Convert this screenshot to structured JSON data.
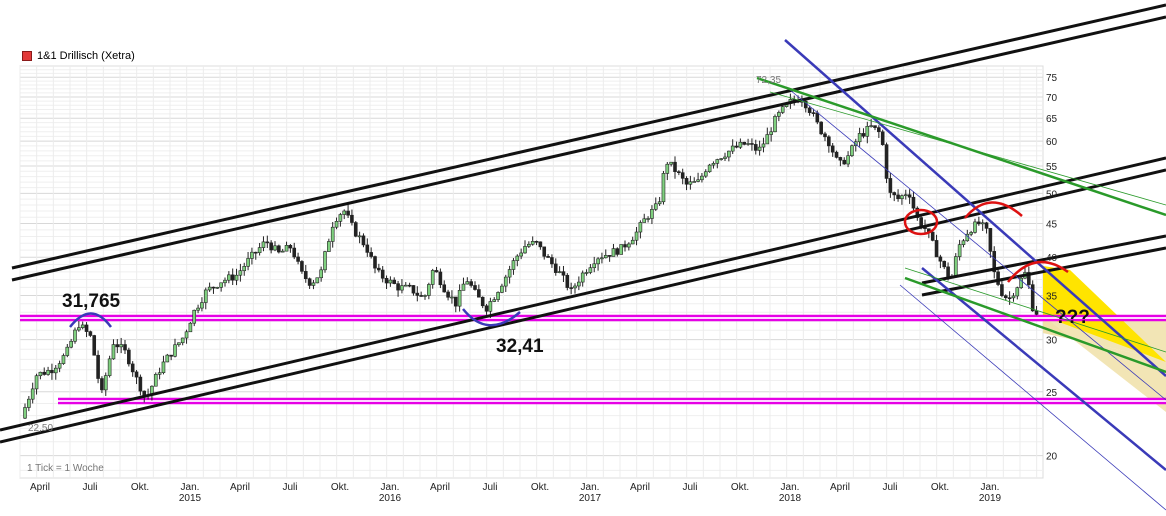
{
  "legend": {
    "label": "1&1 Drillisch (Xetra)",
    "color": "#e23a3a"
  },
  "tick_note": "1 Tick = 1 Woche",
  "chart_data": {
    "type": "candlestick",
    "title": "1&1 Drillisch (Xetra)",
    "y_axis_side": "right",
    "y_scale": "log",
    "ylim": [
      18.5,
      78
    ],
    "y_ticks": [
      20,
      25,
      30,
      35,
      40,
      45,
      50,
      55,
      60,
      65,
      70,
      75
    ],
    "y_tick_labels": [
      "20",
      "25",
      "30",
      "35",
      "40",
      "45",
      "50",
      "55",
      "60",
      "65",
      "70",
      "75"
    ],
    "x_ticks": [
      {
        "t": 0.0,
        "month": "April",
        "year": ""
      },
      {
        "t": 1.0,
        "month": "Juli",
        "year": ""
      },
      {
        "t": 2.0,
        "month": "Okt.",
        "year": ""
      },
      {
        "t": 3.0,
        "month": "Jan.",
        "year": "2015"
      },
      {
        "t": 4.0,
        "month": "April",
        "year": ""
      },
      {
        "t": 5.0,
        "month": "Juli",
        "year": ""
      },
      {
        "t": 6.0,
        "month": "Okt.",
        "year": ""
      },
      {
        "t": 7.0,
        "month": "Jan.",
        "year": "2016"
      },
      {
        "t": 8.0,
        "month": "April",
        "year": ""
      },
      {
        "t": 9.0,
        "month": "Juli",
        "year": ""
      },
      {
        "t": 10.0,
        "month": "Okt.",
        "year": ""
      },
      {
        "t": 11.0,
        "month": "Jan.",
        "year": "2017"
      },
      {
        "t": 12.0,
        "month": "April",
        "year": ""
      },
      {
        "t": 13.0,
        "month": "Juli",
        "year": ""
      },
      {
        "t": 14.0,
        "month": "Okt.",
        "year": ""
      },
      {
        "t": 15.0,
        "month": "Jan.",
        "year": "2018"
      },
      {
        "t": 16.0,
        "month": "April",
        "year": ""
      },
      {
        "t": 17.0,
        "month": "Juli",
        "year": ""
      },
      {
        "t": 18.0,
        "month": "Okt.",
        "year": ""
      },
      {
        "t": 19.0,
        "month": "Jan.",
        "year": "2019"
      }
    ],
    "grid": true,
    "path_points": [
      [
        -0.3,
        22.8
      ],
      [
        -0.15,
        24.5
      ],
      [
        0.0,
        26.5
      ],
      [
        0.3,
        27.0
      ],
      [
        0.6,
        28.5
      ],
      [
        0.85,
        31.7
      ],
      [
        1.1,
        30.2
      ],
      [
        1.3,
        24.5
      ],
      [
        1.55,
        29.8
      ],
      [
        1.8,
        28.6
      ],
      [
        2.0,
        26.2
      ],
      [
        2.2,
        24.4
      ],
      [
        2.5,
        27.3
      ],
      [
        2.75,
        29.0
      ],
      [
        2.95,
        30.3
      ],
      [
        3.15,
        33.0
      ],
      [
        3.4,
        35.5
      ],
      [
        3.7,
        36.8
      ],
      [
        4.0,
        37.5
      ],
      [
        4.3,
        40.0
      ],
      [
        4.6,
        42.3
      ],
      [
        4.85,
        40.5
      ],
      [
        5.1,
        41.5
      ],
      [
        5.3,
        37.8
      ],
      [
        5.5,
        36.5
      ],
      [
        5.7,
        38.0
      ],
      [
        5.95,
        45.5
      ],
      [
        6.15,
        47.2
      ],
      [
        6.35,
        44.0
      ],
      [
        6.6,
        41.5
      ],
      [
        6.8,
        38.0
      ],
      [
        7.0,
        37.0
      ],
      [
        7.25,
        36.0
      ],
      [
        7.5,
        35.8
      ],
      [
        7.75,
        34.5
      ],
      [
        7.95,
        38.5
      ],
      [
        8.2,
        35.5
      ],
      [
        8.4,
        34.0
      ],
      [
        8.6,
        37.2
      ],
      [
        8.8,
        35.0
      ],
      [
        9.0,
        33.5
      ],
      [
        9.15,
        34.8
      ],
      [
        9.4,
        37.5
      ],
      [
        9.6,
        40.0
      ],
      [
        9.8,
        41.8
      ],
      [
        10.0,
        42.0
      ],
      [
        10.2,
        40.0
      ],
      [
        10.45,
        38.0
      ],
      [
        10.7,
        35.5
      ],
      [
        10.9,
        37.5
      ],
      [
        11.2,
        40.0
      ],
      [
        11.45,
        40.5
      ],
      [
        11.7,
        41.2
      ],
      [
        12.0,
        43.5
      ],
      [
        12.2,
        46.0
      ],
      [
        12.45,
        48.0
      ],
      [
        12.6,
        56.0
      ],
      [
        12.8,
        54.0
      ],
      [
        13.0,
        51.5
      ],
      [
        13.25,
        52.0
      ],
      [
        13.45,
        55.5
      ],
      [
        13.7,
        57.0
      ],
      [
        13.95,
        58.5
      ],
      [
        14.2,
        59.5
      ],
      [
        14.45,
        58.0
      ],
      [
        14.6,
        60.5
      ],
      [
        14.8,
        65.0
      ],
      [
        15.05,
        68.5
      ],
      [
        15.3,
        70.0
      ],
      [
        15.5,
        66.5
      ],
      [
        15.65,
        63.0
      ],
      [
        15.85,
        60.0
      ],
      [
        16.05,
        55.0
      ],
      [
        16.25,
        57.0
      ],
      [
        16.45,
        61.0
      ],
      [
        16.7,
        63.0
      ],
      [
        16.9,
        61.5
      ],
      [
        17.05,
        50.0
      ],
      [
        17.25,
        49.0
      ],
      [
        17.45,
        50.5
      ],
      [
        17.6,
        46.0
      ],
      [
        17.8,
        44.0
      ],
      [
        17.95,
        41.5
      ],
      [
        18.15,
        38.5
      ],
      [
        18.3,
        37.0
      ],
      [
        18.45,
        41.5
      ],
      [
        18.65,
        44.0
      ],
      [
        18.85,
        45.0
      ],
      [
        19.0,
        44.0
      ],
      [
        19.15,
        38.0
      ],
      [
        19.3,
        35.5
      ],
      [
        19.45,
        34.5
      ],
      [
        19.65,
        36.5
      ],
      [
        19.8,
        38.0
      ],
      [
        19.95,
        33.0
      ]
    ],
    "annotations": [
      {
        "text": "31,765",
        "type": "label"
      },
      {
        "text": "32,41",
        "type": "label"
      },
      {
        "text": "72,35",
        "type": "label"
      },
      {
        "text": "???",
        "type": "label"
      },
      {
        "text": "22,50",
        "type": "label"
      }
    ]
  }
}
